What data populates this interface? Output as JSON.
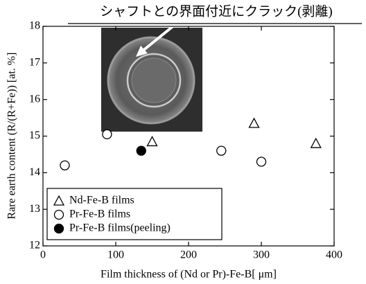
{
  "chart_data": {
    "type": "scatter",
    "annotation": "シャフトとの界面付近にクラック(剥離)",
    "xlabel": "Film thickness of (Nd or Pr)-Fe-B[ μm]",
    "ylabel": "Rare earth content (R/(R+Fe)) [at. %]",
    "xlim": [
      0,
      400
    ],
    "xticks": [
      0,
      100,
      200,
      300,
      400
    ],
    "ylim": [
      12,
      18
    ],
    "yticks": [
      12,
      13,
      14,
      15,
      16,
      17,
      18
    ],
    "grid": false,
    "legend": "lower left",
    "series": [
      {
        "name": "Nd-Fe-B films",
        "color": "#000000",
        "marker": "triangle",
        "filled": false,
        "x": [
          150,
          290,
          375
        ],
        "values": [
          14.85,
          15.35,
          14.8
        ]
      },
      {
        "name": "Pr-Fe-B films",
        "color": "#000000",
        "marker": "circle",
        "filled": false,
        "x": [
          30,
          88,
          245,
          300
        ],
        "values": [
          14.2,
          15.05,
          14.6,
          14.3
        ]
      },
      {
        "name": "Pr-Fe-B films(peeling)",
        "color": "#000000",
        "marker": "circle",
        "filled": true,
        "x": [
          135
        ],
        "values": [
          14.6
        ]
      }
    ]
  }
}
